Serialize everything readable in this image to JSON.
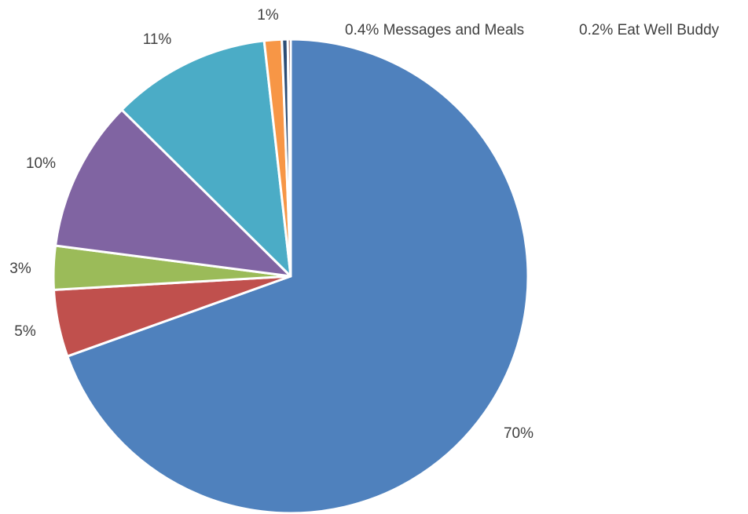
{
  "chart_data": {
    "type": "pie",
    "start_angle_deg": 0,
    "direction": "clockwise",
    "legend": "none",
    "slices": [
      {
        "label": "70%",
        "value": 70.0,
        "color": "#4F81BD"
      },
      {
        "label": "5%",
        "value": 4.6,
        "color": "#C0504D"
      },
      {
        "label": "3%",
        "value": 3.0,
        "color": "#9BBB59"
      },
      {
        "label": "10%",
        "value": 10.4,
        "color": "#8064A2"
      },
      {
        "label": "11%",
        "value": 10.9,
        "color": "#4BACC6"
      },
      {
        "label": "1%",
        "value": 1.2,
        "color": "#F79646"
      },
      {
        "label": "0.4% Messages and Meals",
        "value": 0.4,
        "color": "#2C4D75"
      },
      {
        "label": "0.2% Eat Well Buddy",
        "value": 0.2,
        "color": "#772C2A"
      }
    ]
  }
}
